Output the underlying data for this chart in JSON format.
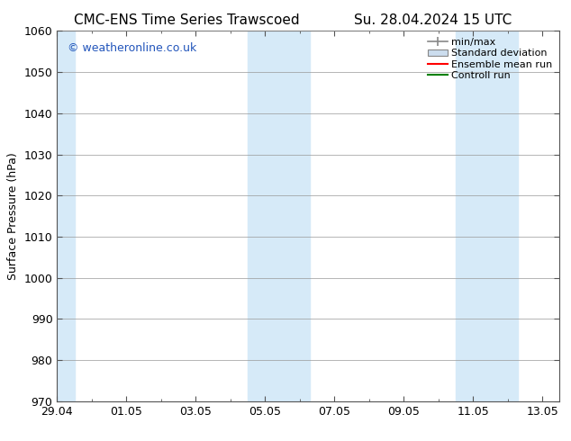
{
  "title_left": "CMC-ENS Time Series Trawscoed",
  "title_right": "Su. 28.04.2024 15 UTC",
  "ylabel": "Surface Pressure (hPa)",
  "ylim": [
    970,
    1060
  ],
  "yticks": [
    970,
    980,
    990,
    1000,
    1010,
    1020,
    1030,
    1040,
    1050,
    1060
  ],
  "xlim": [
    0,
    14.5
  ],
  "xtick_positions": [
    0,
    2,
    4,
    6,
    8,
    10,
    12,
    14
  ],
  "xtick_labels": [
    "29.04",
    "01.05",
    "03.05",
    "05.05",
    "07.05",
    "09.05",
    "11.05",
    "13.05"
  ],
  "shaded_regions": [
    {
      "x_start": -0.1,
      "x_end": 0.5
    },
    {
      "x_start": 5.5,
      "x_end": 6.5
    },
    {
      "x_start": 6.5,
      "x_end": 7.3
    },
    {
      "x_start": 11.5,
      "x_end": 12.3
    },
    {
      "x_start": 12.3,
      "x_end": 13.3
    }
  ],
  "shaded_color": "#d6eaf8",
  "watermark_text": "© weatheronline.co.uk",
  "watermark_color": "#2255bb",
  "background_color": "#ffffff",
  "grid_color": "#999999",
  "title_fontsize": 11,
  "ylabel_fontsize": 9,
  "tick_fontsize": 9,
  "watermark_fontsize": 9,
  "legend_fontsize": 8
}
